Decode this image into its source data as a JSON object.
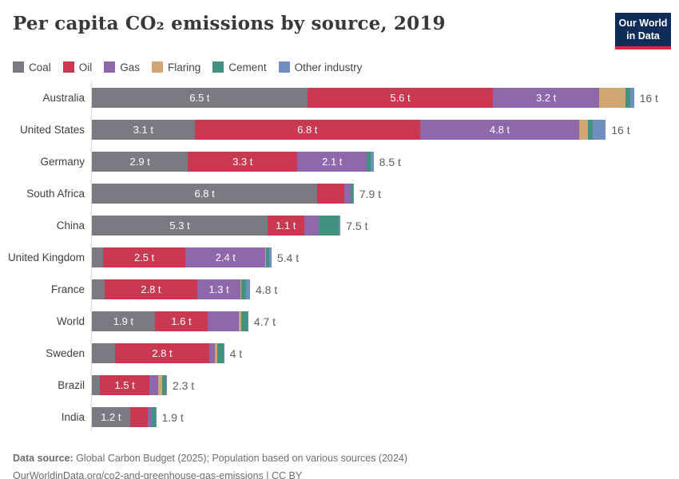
{
  "header": {
    "title": "Per capita CO₂ emissions by source, 2019",
    "logo": {
      "line1": "Our World",
      "line2": "in Data"
    }
  },
  "chart_data": {
    "type": "bar",
    "orientation": "horizontal",
    "stacked": true,
    "unit": "t",
    "title": "Per capita CO₂ emissions by source, 2019",
    "legend_position": "top",
    "series": [
      {
        "name": "Coal",
        "color": "#7a7a83"
      },
      {
        "name": "Oil",
        "color": "#c93a52"
      },
      {
        "name": "Gas",
        "color": "#8f68ab"
      },
      {
        "name": "Flaring",
        "color": "#d0a672"
      },
      {
        "name": "Cement",
        "color": "#43917f"
      },
      {
        "name": "Other industry",
        "color": "#6f8fbf"
      }
    ],
    "rows": [
      {
        "label": "Australia",
        "values": [
          6.5,
          5.6,
          3.2,
          0.79,
          0.14,
          0.12
        ],
        "segment_labels": [
          "6.5 t",
          "5.6 t",
          "3.2 t",
          "",
          "",
          ""
        ],
        "total_label": "16 t"
      },
      {
        "label": "United States",
        "values": [
          3.1,
          6.8,
          4.8,
          0.27,
          0.14,
          0.39
        ],
        "segment_labels": [
          "3.1 t",
          "6.8 t",
          "4.8 t",
          "",
          "",
          ""
        ],
        "total_label": "16 t"
      },
      {
        "label": "Germany",
        "values": [
          2.9,
          3.3,
          2.1,
          0.0,
          0.12,
          0.08
        ],
        "segment_labels": [
          "2.9 t",
          "3.3 t",
          "2.1 t",
          "",
          "",
          ""
        ],
        "total_label": "8.5 t"
      },
      {
        "label": "South Africa",
        "values": [
          6.8,
          0.82,
          0.19,
          0.0,
          0.07,
          0.02
        ],
        "segment_labels": [
          "6.8 t",
          "",
          "",
          "",
          "",
          ""
        ],
        "total_label": "7.9 t"
      },
      {
        "label": "China",
        "values": [
          5.3,
          1.1,
          0.45,
          0.0,
          0.6,
          0.05
        ],
        "segment_labels": [
          "5.3 t",
          "1.1 t",
          "",
          "",
          "",
          ""
        ],
        "total_label": "7.5 t"
      },
      {
        "label": "United Kingdom",
        "values": [
          0.33,
          2.5,
          2.4,
          0.03,
          0.08,
          0.08
        ],
        "segment_labels": [
          "",
          "2.5 t",
          "2.4 t",
          "",
          "",
          ""
        ],
        "total_label": "5.4 t"
      },
      {
        "label": "France",
        "values": [
          0.38,
          2.8,
          1.3,
          0.02,
          0.15,
          0.12
        ],
        "segment_labels": [
          "",
          "2.8 t",
          "1.3 t",
          "",
          "",
          ""
        ],
        "total_label": "4.8 t"
      },
      {
        "label": "World",
        "values": [
          1.9,
          1.6,
          0.94,
          0.06,
          0.2,
          0.02
        ],
        "segment_labels": [
          "1.9 t",
          "1.6 t",
          "",
          "",
          "",
          ""
        ],
        "total_label": "4.7 t"
      },
      {
        "label": "Sweden",
        "values": [
          0.7,
          2.84,
          0.17,
          0.07,
          0.19,
          0.02
        ],
        "segment_labels": [
          "",
          "2.8 t",
          "",
          "",
          "",
          ""
        ],
        "total_label": "4 t"
      },
      {
        "label": "Brazil",
        "values": [
          0.24,
          1.5,
          0.26,
          0.12,
          0.12,
          0.02
        ],
        "segment_labels": [
          "",
          "1.5 t",
          "",
          "",
          "",
          ""
        ],
        "total_label": "2.3 t"
      },
      {
        "label": "India",
        "values": [
          1.15,
          0.53,
          0.12,
          0.02,
          0.1,
          0.02
        ],
        "segment_labels": [
          "1.2 t",
          "",
          "",
          "",
          "",
          ""
        ],
        "total_label": "1.9 t"
      }
    ]
  },
  "footer": {
    "line1_bold": "Data source:",
    "line1_rest": " Global Carbon Budget (2025); Population based on various sources (2024)",
    "line2": "OurWorldinData.org/co2-and-greenhouse-gas-emissions | CC BY"
  }
}
